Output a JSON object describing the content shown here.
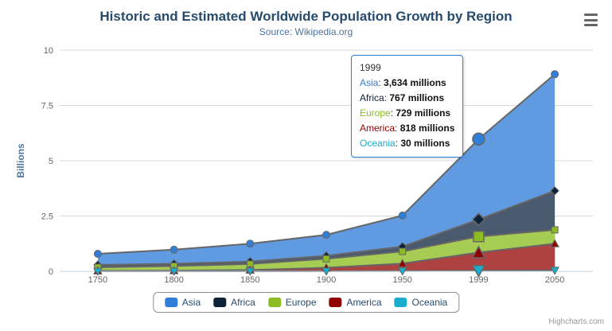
{
  "chart": {
    "title": "Historic and Estimated Worldwide Population Growth by Region",
    "subtitle": "Source: Wikipedia.org",
    "credits": "Highcharts.com",
    "background_color": "#ffffff",
    "title_color": "#274b6d",
    "subtitle_color": "#4d759e"
  },
  "chart_data": {
    "type": "area",
    "stacking": "normal",
    "title": "Historic and Estimated Worldwide Population Growth by Region",
    "subtitle": "Source: Wikipedia.org",
    "categories": [
      "1750",
      "1800",
      "1850",
      "1900",
      "1950",
      "1999",
      "2050"
    ],
    "unit": "millions",
    "xlabel": "",
    "ylabel": "Billions",
    "ylim": [
      0,
      10
    ],
    "yticks": [
      0,
      2.5,
      5,
      7.5,
      10
    ],
    "ytick_labels": [
      "0",
      "2.5",
      "5",
      "7.5",
      "10"
    ],
    "grid": true,
    "legend_position": "bottom",
    "line_color": "#666666",
    "grid_color": "#d8d8d8",
    "axis_line_color": "#c0d0e0",
    "axis_label_color": "#666666",
    "series": [
      {
        "name": "Asia",
        "color": "#2f7ed8",
        "fill": "#609ae1",
        "marker": "circle",
        "values": [
          502,
          635,
          809,
          947,
          1402,
          3634,
          5268
        ]
      },
      {
        "name": "Africa",
        "color": "#0d233a",
        "fill": "#4a5a6e",
        "marker": "diamond",
        "values": [
          106,
          107,
          111,
          133,
          221,
          767,
          1766
        ]
      },
      {
        "name": "Europe",
        "color": "#8bbc21",
        "fill": "#a6cc53",
        "marker": "square",
        "values": [
          163,
          203,
          276,
          408,
          547,
          729,
          628
        ]
      },
      {
        "name": "America",
        "color": "#910000",
        "fill": "#ae4241",
        "marker": "triangle",
        "values": [
          18,
          31,
          54,
          156,
          339,
          818,
          1201
        ]
      },
      {
        "name": "Oceania",
        "color": "#1aadce",
        "fill": "#55c1d9",
        "marker": "triangle-down",
        "values": [
          2,
          2,
          2,
          6,
          13,
          30,
          46
        ]
      }
    ]
  },
  "tooltip": {
    "header": "1999",
    "hover_index": 5,
    "rows": [
      {
        "name": "Asia",
        "color": "#2f7ed8",
        "value": "3,634 millions"
      },
      {
        "name": "Africa",
        "color": "#0d233a",
        "value": "767 millions"
      },
      {
        "name": "Europe",
        "color": "#8bbc21",
        "value": "729 millions"
      },
      {
        "name": "America",
        "color": "#910000",
        "value": "818 millions"
      },
      {
        "name": "Oceania",
        "color": "#1aadce",
        "value": "30 millions"
      }
    ]
  },
  "legend": {
    "items": [
      "Asia",
      "Africa",
      "Europe",
      "America",
      "Oceania"
    ]
  }
}
